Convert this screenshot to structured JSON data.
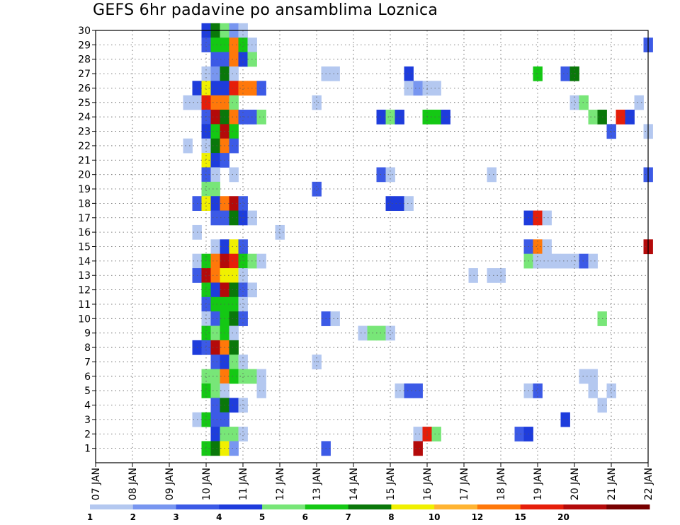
{
  "chart_data": {
    "type": "heatmap",
    "title": "GEFS 6hr padavine po ansamblima Loznica",
    "xlabel": "",
    "ylabel": "",
    "x_tick_labels": [
      "07 JAN",
      "08 JAN",
      "09 JAN",
      "10 JAN",
      "11 JAN",
      "12 JAN",
      "13 JAN",
      "14 JAN",
      "15 JAN",
      "16 JAN",
      "17 JAN",
      "18 JAN",
      "19 JAN",
      "20 JAN",
      "21 JAN",
      "22 JAN"
    ],
    "y_tick_labels": [
      "1",
      "2",
      "3",
      "4",
      "5",
      "6",
      "7",
      "8",
      "9",
      "10",
      "11",
      "12",
      "13",
      "14",
      "15",
      "16",
      "17",
      "18",
      "19",
      "20",
      "21",
      "22",
      "23",
      "24",
      "25",
      "26",
      "27",
      "28",
      "29",
      "30"
    ],
    "xlim_days": [
      7,
      22
    ],
    "ylim_members": [
      0,
      30
    ],
    "grid": true,
    "color_levels": [
      {
        "label": "1",
        "color": "#b4c8f0"
      },
      {
        "label": "2",
        "color": "#7896f0"
      },
      {
        "label": "3",
        "color": "#3c5ae6"
      },
      {
        "label": "4",
        "color": "#1e3cdc"
      },
      {
        "label": "5",
        "color": "#78e678"
      },
      {
        "label": "6",
        "color": "#14c814"
      },
      {
        "label": "7",
        "color": "#0a780a"
      },
      {
        "label": "8",
        "color": "#f0f000"
      },
      {
        "label": "10",
        "color": "#ffb432"
      },
      {
        "label": "12",
        "color": "#ff780a"
      },
      {
        "label": "15",
        "color": "#e61e0a"
      },
      {
        "label": "20",
        "color": "#b40a0a"
      },
      {
        "label": "",
        "color": "#780000"
      }
    ],
    "cells_note": "[day, ensemble_member, level_index]",
    "cells": [
      [
        10.0,
        30,
        3
      ],
      [
        10.25,
        30,
        6
      ],
      [
        10.5,
        30,
        4
      ],
      [
        10.75,
        30,
        1
      ],
      [
        11.0,
        30,
        0
      ],
      [
        10.0,
        29,
        2
      ],
      [
        10.25,
        29,
        5
      ],
      [
        10.5,
        29,
        5
      ],
      [
        10.75,
        29,
        9
      ],
      [
        11.0,
        29,
        5
      ],
      [
        11.25,
        29,
        0
      ],
      [
        22.0,
        29,
        2
      ],
      [
        10.25,
        28,
        2
      ],
      [
        10.5,
        28,
        2
      ],
      [
        10.75,
        28,
        9
      ],
      [
        11.0,
        28,
        3
      ],
      [
        11.25,
        28,
        4
      ],
      [
        10.0,
        27,
        0
      ],
      [
        10.25,
        27,
        1
      ],
      [
        10.5,
        27,
        6
      ],
      [
        10.75,
        27,
        0
      ],
      [
        13.25,
        27,
        0
      ],
      [
        13.5,
        27,
        0
      ],
      [
        15.5,
        27,
        3
      ],
      [
        19.0,
        27,
        5
      ],
      [
        19.75,
        27,
        2
      ],
      [
        20.0,
        27,
        6
      ],
      [
        9.75,
        26,
        3
      ],
      [
        10.0,
        26,
        7
      ],
      [
        10.25,
        26,
        3
      ],
      [
        10.5,
        26,
        3
      ],
      [
        10.75,
        26,
        10
      ],
      [
        11.0,
        26,
        9
      ],
      [
        11.25,
        26,
        9
      ],
      [
        11.5,
        26,
        2
      ],
      [
        15.5,
        26,
        0
      ],
      [
        15.75,
        26,
        1
      ],
      [
        16.0,
        26,
        0
      ],
      [
        16.25,
        26,
        0
      ],
      [
        9.5,
        25,
        0
      ],
      [
        9.75,
        25,
        0
      ],
      [
        10.0,
        25,
        10
      ],
      [
        10.25,
        25,
        9
      ],
      [
        10.5,
        25,
        9
      ],
      [
        10.75,
        25,
        4
      ],
      [
        13.0,
        25,
        0
      ],
      [
        20.0,
        25,
        0
      ],
      [
        20.25,
        25,
        4
      ],
      [
        21.75,
        25,
        0
      ],
      [
        10.0,
        24,
        2
      ],
      [
        10.25,
        24,
        11
      ],
      [
        10.5,
        24,
        6
      ],
      [
        10.75,
        24,
        9
      ],
      [
        11.0,
        24,
        2
      ],
      [
        11.25,
        24,
        2
      ],
      [
        11.5,
        24,
        4
      ],
      [
        14.75,
        24,
        3
      ],
      [
        15.0,
        24,
        4
      ],
      [
        15.25,
        24,
        3
      ],
      [
        16.0,
        24,
        5
      ],
      [
        16.25,
        24,
        5
      ],
      [
        16.5,
        24,
        3
      ],
      [
        20.5,
        24,
        4
      ],
      [
        20.75,
        24,
        6
      ],
      [
        21.25,
        24,
        10
      ],
      [
        21.5,
        24,
        3
      ],
      [
        10.0,
        23,
        3
      ],
      [
        10.25,
        23,
        5
      ],
      [
        10.5,
        23,
        11
      ],
      [
        10.75,
        23,
        5
      ],
      [
        21.0,
        23,
        2
      ],
      [
        22.0,
        23,
        0
      ],
      [
        9.5,
        22,
        0
      ],
      [
        10.0,
        22,
        0
      ],
      [
        10.25,
        22,
        6
      ],
      [
        10.5,
        22,
        9
      ],
      [
        10.75,
        22,
        2
      ],
      [
        10.0,
        21,
        7
      ],
      [
        10.25,
        21,
        3
      ],
      [
        10.5,
        21,
        2
      ],
      [
        10.0,
        20,
        2
      ],
      [
        10.25,
        20,
        0
      ],
      [
        10.75,
        20,
        0
      ],
      [
        14.75,
        20,
        2
      ],
      [
        15.0,
        20,
        0
      ],
      [
        17.75,
        20,
        0
      ],
      [
        22.0,
        20,
        2
      ],
      [
        10.0,
        19,
        4
      ],
      [
        10.25,
        19,
        4
      ],
      [
        13.0,
        19,
        2
      ],
      [
        9.75,
        18,
        2
      ],
      [
        10.0,
        18,
        7
      ],
      [
        10.25,
        18,
        3
      ],
      [
        10.5,
        18,
        9
      ],
      [
        10.75,
        18,
        11
      ],
      [
        11.0,
        18,
        2
      ],
      [
        15.0,
        18,
        3
      ],
      [
        15.25,
        18,
        3
      ],
      [
        15.5,
        18,
        0
      ],
      [
        10.25,
        17,
        2
      ],
      [
        10.5,
        17,
        2
      ],
      [
        10.75,
        17,
        6
      ],
      [
        11.0,
        17,
        3
      ],
      [
        11.25,
        17,
        0
      ],
      [
        18.75,
        17,
        3
      ],
      [
        19.0,
        17,
        10
      ],
      [
        19.25,
        17,
        0
      ],
      [
        9.75,
        16,
        0
      ],
      [
        12.0,
        16,
        0
      ],
      [
        10.25,
        15,
        0
      ],
      [
        10.5,
        15,
        3
      ],
      [
        10.75,
        15,
        7
      ],
      [
        11.0,
        15,
        2
      ],
      [
        18.75,
        15,
        2
      ],
      [
        19.0,
        15,
        9
      ],
      [
        19.25,
        15,
        0
      ],
      [
        22.0,
        15,
        11
      ],
      [
        9.75,
        14,
        0
      ],
      [
        10.0,
        14,
        5
      ],
      [
        10.25,
        14,
        9
      ],
      [
        10.5,
        14,
        11
      ],
      [
        10.75,
        14,
        10
      ],
      [
        11.0,
        14,
        5
      ],
      [
        11.25,
        14,
        4
      ],
      [
        11.5,
        14,
        0
      ],
      [
        18.75,
        14,
        4
      ],
      [
        19.0,
        14,
        0
      ],
      [
        19.25,
        14,
        0
      ],
      [
        19.5,
        14,
        0
      ],
      [
        19.75,
        14,
        0
      ],
      [
        20.0,
        14,
        0
      ],
      [
        20.25,
        14,
        2
      ],
      [
        20.5,
        14,
        0
      ],
      [
        9.75,
        13,
        2
      ],
      [
        10.0,
        13,
        11
      ],
      [
        10.25,
        13,
        9
      ],
      [
        10.5,
        13,
        7
      ],
      [
        10.75,
        13,
        7
      ],
      [
        11.0,
        13,
        0
      ],
      [
        17.25,
        13,
        0
      ],
      [
        17.75,
        13,
        0
      ],
      [
        18.0,
        13,
        0
      ],
      [
        10.0,
        12,
        5
      ],
      [
        10.25,
        12,
        3
      ],
      [
        10.5,
        12,
        11
      ],
      [
        10.75,
        12,
        6
      ],
      [
        11.0,
        12,
        2
      ],
      [
        11.25,
        12,
        0
      ],
      [
        10.0,
        11,
        2
      ],
      [
        10.25,
        11,
        5
      ],
      [
        10.5,
        11,
        5
      ],
      [
        10.75,
        11,
        5
      ],
      [
        11.0,
        11,
        0
      ],
      [
        10.0,
        10,
        0
      ],
      [
        10.25,
        10,
        2
      ],
      [
        10.5,
        10,
        5
      ],
      [
        10.75,
        10,
        6
      ],
      [
        11.0,
        10,
        2
      ],
      [
        13.25,
        10,
        2
      ],
      [
        13.5,
        10,
        0
      ],
      [
        20.75,
        10,
        4
      ],
      [
        10.0,
        9,
        5
      ],
      [
        10.25,
        9,
        4
      ],
      [
        10.5,
        9,
        5
      ],
      [
        10.75,
        9,
        0
      ],
      [
        14.25,
        9,
        0
      ],
      [
        14.5,
        9,
        4
      ],
      [
        14.75,
        9,
        4
      ],
      [
        15.0,
        9,
        0
      ],
      [
        9.75,
        8,
        3
      ],
      [
        10.0,
        8,
        2
      ],
      [
        10.25,
        8,
        11
      ],
      [
        10.5,
        8,
        9
      ],
      [
        10.75,
        8,
        6
      ],
      [
        10.25,
        7,
        2
      ],
      [
        10.5,
        7,
        3
      ],
      [
        10.75,
        7,
        4
      ],
      [
        11.0,
        7,
        0
      ],
      [
        13.0,
        7,
        0
      ],
      [
        10.0,
        6,
        4
      ],
      [
        10.25,
        6,
        4
      ],
      [
        10.5,
        6,
        9
      ],
      [
        10.75,
        6,
        5
      ],
      [
        11.0,
        6,
        4
      ],
      [
        11.25,
        6,
        4
      ],
      [
        11.5,
        6,
        0
      ],
      [
        20.25,
        6,
        0
      ],
      [
        20.5,
        6,
        0
      ],
      [
        10.0,
        5,
        5
      ],
      [
        10.25,
        5,
        4
      ],
      [
        10.5,
        5,
        0
      ],
      [
        11.5,
        5,
        0
      ],
      [
        15.25,
        5,
        0
      ],
      [
        15.5,
        5,
        2
      ],
      [
        15.75,
        5,
        2
      ],
      [
        18.75,
        5,
        0
      ],
      [
        19.0,
        5,
        2
      ],
      [
        20.5,
        5,
        0
      ],
      [
        21.0,
        5,
        0
      ],
      [
        10.25,
        4,
        2
      ],
      [
        10.5,
        4,
        6
      ],
      [
        10.75,
        4,
        3
      ],
      [
        11.0,
        4,
        0
      ],
      [
        20.75,
        4,
        0
      ],
      [
        9.75,
        3,
        0
      ],
      [
        10.0,
        3,
        5
      ],
      [
        10.25,
        3,
        2
      ],
      [
        10.5,
        3,
        2
      ],
      [
        19.75,
        3,
        3
      ],
      [
        10.25,
        2,
        3
      ],
      [
        10.5,
        2,
        4
      ],
      [
        10.75,
        2,
        4
      ],
      [
        11.0,
        2,
        0
      ],
      [
        15.75,
        2,
        0
      ],
      [
        16.0,
        2,
        10
      ],
      [
        16.25,
        2,
        4
      ],
      [
        18.5,
        2,
        2
      ],
      [
        18.75,
        2,
        3
      ],
      [
        10.0,
        1,
        5
      ],
      [
        10.25,
        1,
        6
      ],
      [
        10.5,
        1,
        7
      ],
      [
        10.75,
        1,
        1
      ],
      [
        13.25,
        1,
        2
      ],
      [
        15.75,
        1,
        11
      ]
    ]
  }
}
